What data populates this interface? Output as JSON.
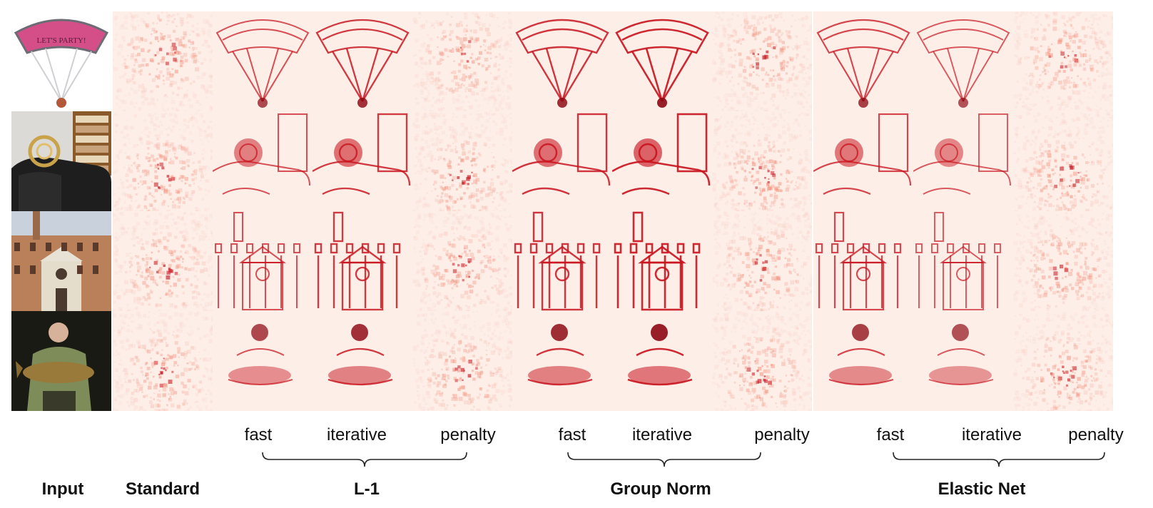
{
  "figure": {
    "rows": [
      {
        "subject": "parachute",
        "input_text": "LET'S PARTY!"
      },
      {
        "subject": "french-horn",
        "input_text": ""
      },
      {
        "subject": "palazzo",
        "input_text": ""
      },
      {
        "subject": "fisherman-with-fish",
        "input_text": ""
      }
    ],
    "columns": [
      {
        "id": "input",
        "kind": "photo"
      },
      {
        "id": "standard",
        "kind": "noise"
      },
      {
        "id": "l1-fast",
        "kind": "structured",
        "strength": 0.7
      },
      {
        "id": "l1-iterative",
        "kind": "structured",
        "strength": 0.95
      },
      {
        "id": "l1-penalty",
        "kind": "noise"
      },
      {
        "id": "gn-fast",
        "kind": "structured",
        "strength": 1.0
      },
      {
        "id": "gn-iterative",
        "kind": "structured",
        "strength": 1.15
      },
      {
        "id": "gn-penalty",
        "kind": "noise"
      },
      {
        "id": "en-fast",
        "kind": "structured",
        "strength": 0.8
      },
      {
        "id": "en-iterative",
        "kind": "structured",
        "strength": 0.6
      },
      {
        "id": "en-penalty",
        "kind": "noise"
      }
    ],
    "sub_labels": {
      "l1": [
        "fast",
        "iterative",
        "penalty"
      ],
      "gn": [
        "fast",
        "iterative",
        "penalty"
      ],
      "en": [
        "fast",
        "iterative",
        "penalty"
      ]
    },
    "group_labels": {
      "input": "Input",
      "standard": "Standard",
      "l1": "L-1",
      "gn": "Group Norm",
      "en": "Elastic Net"
    },
    "colors": {
      "heat_light": "#fdeee8",
      "heat_mid": "#f28a73",
      "heat_dark": "#c8141e",
      "heat_deep": "#8e0a14"
    }
  }
}
